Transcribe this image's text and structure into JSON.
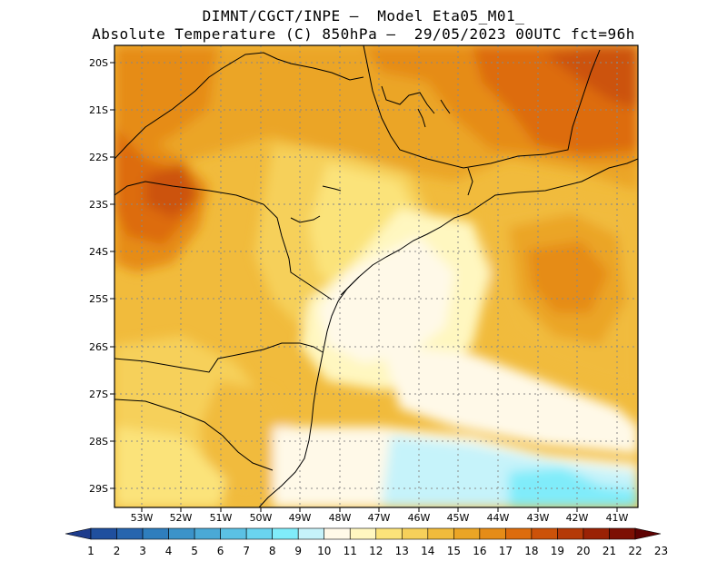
{
  "header": {
    "line1": "DIMNT/CGCT/INPE –  Model Eta05_M01_",
    "line2": "Absolute Temperature (C) 850hPa –  29/05/2023 00UTC fct=96h"
  },
  "map": {
    "lat_labels": [
      "20S",
      "21S",
      "22S",
      "23S",
      "24S",
      "25S",
      "26S",
      "27S",
      "28S",
      "29S"
    ],
    "lon_labels": [
      "53W",
      "52W",
      "51W",
      "50W",
      "49W",
      "48W",
      "47W",
      "46W",
      "45W",
      "44W",
      "43W",
      "42W",
      "41W"
    ]
  },
  "colorbar": {
    "labels": [
      "1",
      "2",
      "3",
      "4",
      "5",
      "6",
      "7",
      "8",
      "9",
      "10",
      "11",
      "12",
      "13",
      "14",
      "15",
      "16",
      "17",
      "18",
      "19",
      "20",
      "21",
      "22",
      "23"
    ],
    "colors": [
      "#1e3c8c",
      "#1f4f9e",
      "#2765ae",
      "#2f7ebd",
      "#3b93c9",
      "#4aa9d6",
      "#5bc1e4",
      "#6ad4ef",
      "#80ecfa",
      "#c6f3fa",
      "#fff9e8",
      "#fff7c0",
      "#fbe37a",
      "#f6d05a",
      "#f1bb3c",
      "#eba525",
      "#e68c17",
      "#dd6c0d",
      "#cc5209",
      "#b53a07",
      "#9a2205",
      "#7d1003",
      "#5e0202"
    ]
  }
}
